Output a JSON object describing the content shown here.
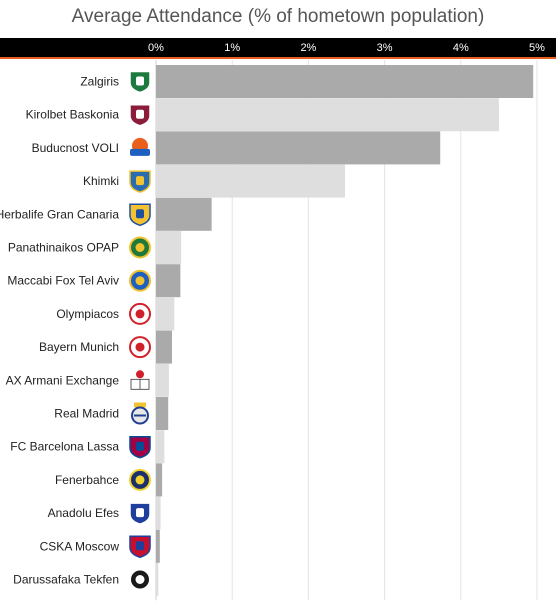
{
  "chart_data": {
    "type": "bar",
    "orientation": "horizontal",
    "title": "Average Attendance (% of hometown population)",
    "xlabel": "",
    "ylabel": "",
    "xlim": [
      0,
      5
    ],
    "x_ticks": [
      "0%",
      "1%",
      "2%",
      "3%",
      "4%",
      "5%"
    ],
    "grid": true,
    "categories": [
      "Zalgiris",
      "Kirolbet Baskonia",
      "Buducnost VOLI",
      "Khimki",
      "Herbalife Gran Canaria",
      "Panathinaikos OPAP",
      "Maccabi Fox Tel Aviv",
      "Olympiacos",
      "Bayern Munich",
      "AX Armani Exchange",
      "Real Madrid",
      "FC Barcelona Lassa",
      "Fenerbahce",
      "Anadolu Efes",
      "CSKA Moscow",
      "Darussafaka Tekfen"
    ],
    "values": [
      4.95,
      4.5,
      3.73,
      2.48,
      0.73,
      0.33,
      0.32,
      0.24,
      0.21,
      0.17,
      0.16,
      0.11,
      0.08,
      0.06,
      0.05,
      0.03
    ],
    "bar_colors": [
      "#aaaaaa",
      "#dedede"
    ],
    "logos": [
      {
        "name": "zalgiris-logo",
        "shape": "shield",
        "fill": "#1d7a3e",
        "accent": "#ffffff"
      },
      {
        "name": "baskonia-logo",
        "shape": "shield",
        "fill": "#8b1d3a",
        "accent": "#ffffff"
      },
      {
        "name": "buducnost-logo",
        "shape": "round",
        "fill": "#1f5fbf",
        "accent": "#e8601c"
      },
      {
        "name": "khimki-logo",
        "shape": "shield",
        "fill": "#2b6cb0",
        "accent": "#f2c230"
      },
      {
        "name": "gran-canaria-logo",
        "shape": "shield",
        "fill": "#f2c230",
        "accent": "#1f4fa0"
      },
      {
        "name": "panathinaikos-logo",
        "shape": "circle",
        "fill": "#1f7a3a",
        "accent": "#f2c230"
      },
      {
        "name": "maccabi-logo",
        "shape": "circle",
        "fill": "#1f5fbf",
        "accent": "#f2c230"
      },
      {
        "name": "olympiacos-logo",
        "shape": "circle",
        "fill": "#ffffff",
        "accent": "#d0202a"
      },
      {
        "name": "bayern-logo",
        "shape": "circle",
        "fill": "#ffffff",
        "accent": "#d0202a"
      },
      {
        "name": "armani-logo",
        "shape": "mark",
        "fill": "#ffffff",
        "accent": "#d0202a"
      },
      {
        "name": "real-madrid-logo",
        "shape": "crest",
        "fill": "#e8e8e8",
        "accent": "#1f3f8f"
      },
      {
        "name": "barcelona-logo",
        "shape": "shield",
        "fill": "#a50044",
        "accent": "#004d98"
      },
      {
        "name": "fenerbahce-logo",
        "shape": "circle",
        "fill": "#1c2f6b",
        "accent": "#f2d230"
      },
      {
        "name": "efes-logo",
        "shape": "shield",
        "fill": "#1f3f9f",
        "accent": "#ffffff"
      },
      {
        "name": "cska-logo",
        "shape": "shield",
        "fill": "#c8102e",
        "accent": "#1f3f9f"
      },
      {
        "name": "darussafaka-logo",
        "shape": "circle",
        "fill": "#1a1a1a",
        "accent": "#ffffff"
      }
    ]
  }
}
